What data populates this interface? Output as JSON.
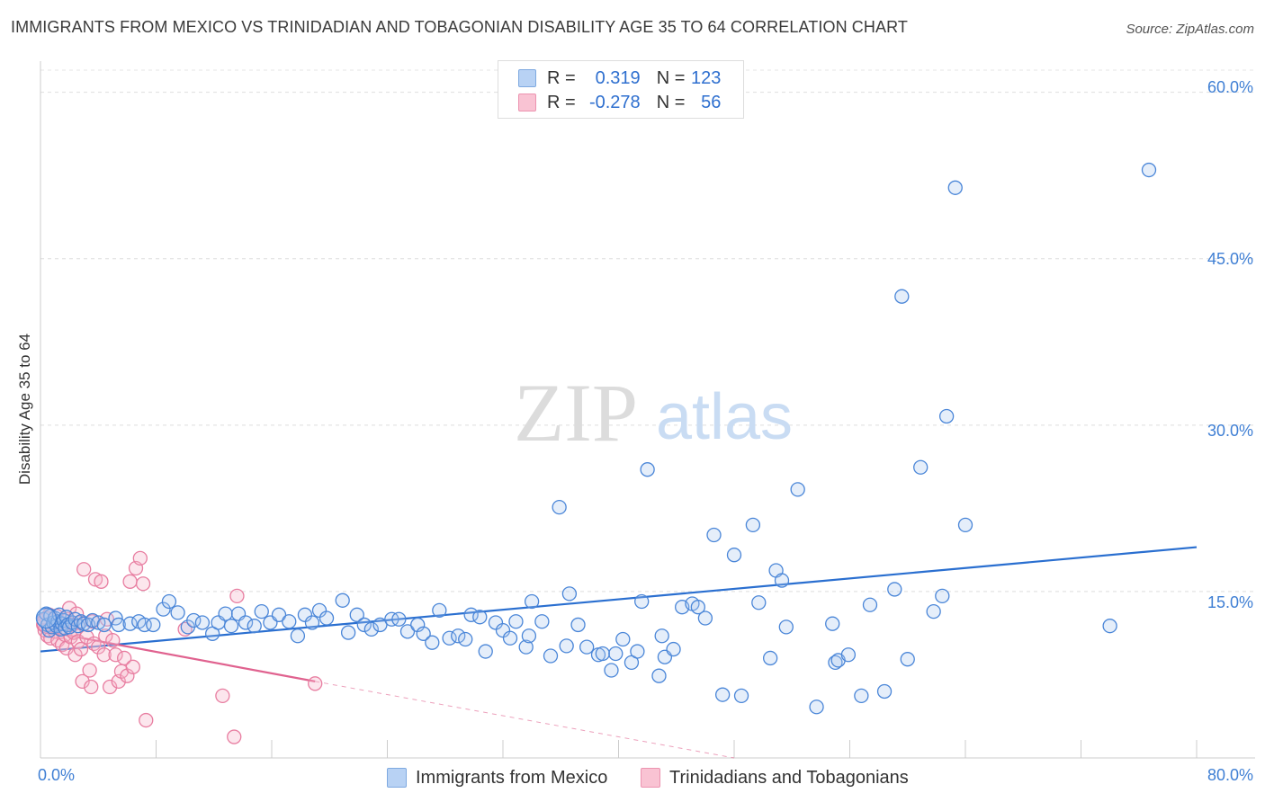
{
  "title": "IMMIGRANTS FROM MEXICO VS TRINIDADIAN AND TOBAGONIAN DISABILITY AGE 35 TO 64 CORRELATION CHART",
  "source": "Source: ZipAtlas.com",
  "watermark": {
    "zip": "ZIP",
    "atlas": "atlas"
  },
  "legend": {
    "r_label": "R =",
    "n_label": "N =",
    "rows": [
      {
        "r": "0.319",
        "n": "123",
        "color": "#b8d2f4"
      },
      {
        "r": "-0.278",
        "n": "56",
        "color": "#f9c3d3"
      }
    ]
  },
  "colors": {
    "blue": "#4a86d8",
    "blue_fill": "#a9c7ef",
    "blue_line": "#2a6fd0",
    "pink": "#e87ea1",
    "pink_fill": "#f7b7ca",
    "pink_line": "#e0628f"
  },
  "chart_data": {
    "type": "scatter",
    "title": "IMMIGRANTS FROM MEXICO VS TRINIDADIAN AND TOBAGONIAN DISABILITY AGE 35 TO 64 CORRELATION CHART",
    "xlabel": "",
    "ylabel": "Disability Age 35 to 64",
    "xlim": [
      0,
      80
    ],
    "ylim": [
      0,
      62
    ],
    "x_tick_labels": [
      "0.0%",
      "80.0%"
    ],
    "y_ticks": [
      15,
      30,
      45,
      60
    ],
    "y_tick_labels": [
      "15.0%",
      "30.0%",
      "45.0%",
      "60.0%"
    ],
    "grid": true,
    "legend_position": "top-center",
    "series": [
      {
        "name": "Immigrants from Mexico",
        "color": "#4a86d8",
        "trendline": {
          "x": [
            0,
            80
          ],
          "y": [
            9.6,
            19.0
          ]
        },
        "points": [
          [
            0.2,
            12.5
          ],
          [
            0.4,
            13.0
          ],
          [
            0.5,
            12.0
          ],
          [
            0.6,
            11.5
          ],
          [
            0.7,
            12.8
          ],
          [
            0.8,
            11.8
          ],
          [
            0.9,
            12.2
          ],
          [
            1.0,
            12.6
          ],
          [
            1.1,
            11.9
          ],
          [
            1.2,
            12.3
          ],
          [
            1.3,
            12.9
          ],
          [
            1.4,
            11.6
          ],
          [
            1.5,
            12.1
          ],
          [
            1.6,
            12.4
          ],
          [
            1.7,
            11.7
          ],
          [
            1.8,
            12.7
          ],
          [
            1.9,
            12.0
          ],
          [
            2.0,
            11.8
          ],
          [
            2.2,
            12.2
          ],
          [
            2.4,
            12.5
          ],
          [
            2.6,
            11.9
          ],
          [
            2.8,
            12.3
          ],
          [
            3.0,
            12.1
          ],
          [
            3.3,
            12.0
          ],
          [
            3.6,
            12.4
          ],
          [
            4.0,
            12.2
          ],
          [
            4.4,
            12.0
          ],
          [
            5.2,
            12.6
          ],
          [
            5.4,
            12.0
          ],
          [
            6.2,
            12.1
          ],
          [
            6.8,
            12.3
          ],
          [
            7.2,
            12.0
          ],
          [
            7.8,
            12.0
          ],
          [
            8.5,
            13.4
          ],
          [
            8.9,
            14.1
          ],
          [
            9.5,
            13.1
          ],
          [
            10.2,
            11.8
          ],
          [
            10.6,
            12.4
          ],
          [
            11.2,
            12.2
          ],
          [
            11.9,
            11.2
          ],
          [
            12.3,
            12.2
          ],
          [
            12.8,
            13.0
          ],
          [
            13.2,
            11.9
          ],
          [
            13.7,
            13.0
          ],
          [
            14.2,
            12.2
          ],
          [
            14.8,
            11.9
          ],
          [
            15.3,
            13.2
          ],
          [
            15.9,
            12.2
          ],
          [
            16.5,
            12.9
          ],
          [
            17.2,
            12.3
          ],
          [
            17.8,
            11.0
          ],
          [
            18.3,
            12.9
          ],
          [
            18.8,
            12.2
          ],
          [
            19.3,
            13.3
          ],
          [
            19.8,
            12.6
          ],
          [
            20.9,
            14.2
          ],
          [
            21.3,
            11.3
          ],
          [
            21.9,
            12.9
          ],
          [
            22.4,
            12.0
          ],
          [
            22.9,
            11.6
          ],
          [
            23.5,
            12.0
          ],
          [
            24.3,
            12.5
          ],
          [
            24.8,
            12.5
          ],
          [
            25.4,
            11.4
          ],
          [
            26.1,
            12.0
          ],
          [
            26.5,
            11.2
          ],
          [
            27.1,
            10.4
          ],
          [
            27.6,
            13.3
          ],
          [
            28.3,
            10.8
          ],
          [
            28.9,
            11.0
          ],
          [
            29.4,
            10.7
          ],
          [
            29.8,
            12.9
          ],
          [
            30.4,
            12.7
          ],
          [
            30.8,
            9.6
          ],
          [
            31.5,
            12.2
          ],
          [
            32.0,
            11.5
          ],
          [
            32.5,
            10.8
          ],
          [
            32.9,
            12.3
          ],
          [
            33.6,
            10.0
          ],
          [
            33.8,
            11.0
          ],
          [
            34.0,
            14.1
          ],
          [
            34.7,
            12.3
          ],
          [
            35.3,
            9.2
          ],
          [
            35.9,
            22.6
          ],
          [
            36.4,
            10.1
          ],
          [
            36.6,
            14.8
          ],
          [
            37.2,
            12.0
          ],
          [
            37.8,
            10.0
          ],
          [
            38.6,
            9.3
          ],
          [
            38.9,
            9.4
          ],
          [
            39.5,
            7.9
          ],
          [
            39.8,
            9.4
          ],
          [
            40.3,
            10.7
          ],
          [
            40.9,
            8.6
          ],
          [
            41.3,
            9.6
          ],
          [
            41.6,
            14.1
          ],
          [
            42.0,
            26.0
          ],
          [
            42.8,
            7.4
          ],
          [
            43.0,
            11.0
          ],
          [
            43.2,
            9.1
          ],
          [
            43.8,
            9.8
          ],
          [
            44.4,
            13.6
          ],
          [
            45.1,
            13.9
          ],
          [
            45.5,
            13.6
          ],
          [
            46.0,
            12.6
          ],
          [
            46.6,
            20.1
          ],
          [
            47.2,
            5.7
          ],
          [
            48.0,
            18.3
          ],
          [
            48.5,
            5.6
          ],
          [
            49.3,
            21.0
          ],
          [
            49.7,
            14.0
          ],
          [
            50.5,
            9.0
          ],
          [
            50.9,
            16.9
          ],
          [
            51.3,
            16.0
          ],
          [
            51.6,
            11.8
          ],
          [
            52.4,
            24.2
          ],
          [
            53.7,
            4.6
          ],
          [
            54.8,
            12.1
          ],
          [
            55.0,
            8.6
          ],
          [
            55.2,
            8.8
          ],
          [
            55.9,
            9.3
          ],
          [
            56.8,
            5.6
          ],
          [
            57.4,
            13.8
          ],
          [
            58.4,
            6.0
          ],
          [
            59.1,
            15.2
          ],
          [
            59.6,
            41.6
          ],
          [
            60.0,
            8.9
          ],
          [
            60.9,
            26.2
          ],
          [
            61.8,
            13.2
          ],
          [
            62.4,
            14.6
          ],
          [
            62.7,
            30.8
          ],
          [
            63.3,
            51.4
          ],
          [
            64.0,
            21.0
          ],
          [
            74.0,
            11.9
          ],
          [
            76.7,
            53.0
          ]
        ]
      },
      {
        "name": "Trinidadians and Tobagonians",
        "color": "#e87ea1",
        "trendline": {
          "x": [
            0,
            19.0
          ],
          "y": [
            11.5,
            6.9
          ]
        },
        "trendline_extension": {
          "x": [
            19.0,
            48.0
          ],
          "y": [
            6.9,
            0
          ]
        },
        "points": [
          [
            0.2,
            12.0
          ],
          [
            0.3,
            11.5
          ],
          [
            0.4,
            12.6
          ],
          [
            0.5,
            11.0
          ],
          [
            0.6,
            12.9
          ],
          [
            0.7,
            10.8
          ],
          [
            0.8,
            11.9
          ],
          [
            0.9,
            12.3
          ],
          [
            1.0,
            11.4
          ],
          [
            1.1,
            12.8
          ],
          [
            1.2,
            10.6
          ],
          [
            1.3,
            12.1
          ],
          [
            1.4,
            11.7
          ],
          [
            1.5,
            10.2
          ],
          [
            1.6,
            12.4
          ],
          [
            1.7,
            11.1
          ],
          [
            1.8,
            9.9
          ],
          [
            1.9,
            12.5
          ],
          [
            2.0,
            13.5
          ],
          [
            2.1,
            10.9
          ],
          [
            2.2,
            12.0
          ],
          [
            2.3,
            11.3
          ],
          [
            2.4,
            9.3
          ],
          [
            2.5,
            13.0
          ],
          [
            2.6,
            10.5
          ],
          [
            2.7,
            12.2
          ],
          [
            2.8,
            9.8
          ],
          [
            2.9,
            6.9
          ],
          [
            3.0,
            17.0
          ],
          [
            3.2,
            10.9
          ],
          [
            3.4,
            7.9
          ],
          [
            3.5,
            6.4
          ],
          [
            3.6,
            12.3
          ],
          [
            3.7,
            10.3
          ],
          [
            3.8,
            16.1
          ],
          [
            4.0,
            10.0
          ],
          [
            4.2,
            15.9
          ],
          [
            4.4,
            9.3
          ],
          [
            4.5,
            11.0
          ],
          [
            4.6,
            12.5
          ],
          [
            4.8,
            6.4
          ],
          [
            5.0,
            10.6
          ],
          [
            5.2,
            9.3
          ],
          [
            5.4,
            6.9
          ],
          [
            5.6,
            7.8
          ],
          [
            5.8,
            9.0
          ],
          [
            6.0,
            7.4
          ],
          [
            6.2,
            15.9
          ],
          [
            6.4,
            8.2
          ],
          [
            6.6,
            17.1
          ],
          [
            6.9,
            18.0
          ],
          [
            7.1,
            15.7
          ],
          [
            7.3,
            3.4
          ],
          [
            10.0,
            11.6
          ],
          [
            12.6,
            5.6
          ],
          [
            13.4,
            1.9
          ],
          [
            13.6,
            14.6
          ],
          [
            19.0,
            6.7
          ]
        ]
      }
    ]
  }
}
